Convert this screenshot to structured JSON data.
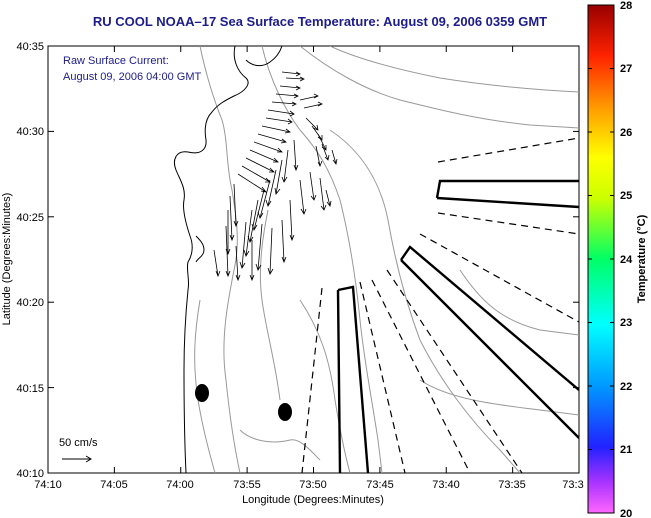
{
  "title": "RU COOL  NOAA–17  Sea Surface Temperature:  August 09, 2006 0359 GMT",
  "legend": {
    "line1": "Raw Surface Current:",
    "line2": "August 09, 2006 04:00 GMT"
  },
  "scale": {
    "label": "50 cm/s"
  },
  "axes": {
    "xlabel": "Longitude (Degrees:Minutes)",
    "ylabel": "Latitude (Degrees:Minutes)",
    "x_ticks": [
      "74:10",
      "74:05",
      "74:00",
      "73:55",
      "73:50",
      "73:45",
      "73:40",
      "73:35",
      "73:3"
    ],
    "y_ticks": [
      "40:35",
      "40:30",
      "40:25",
      "40:20",
      "40:15",
      "40:10"
    ]
  },
  "colorbar": {
    "label": "Temperature (°C)",
    "min": 20,
    "max": 28,
    "ticks": [
      "28",
      "27",
      "26",
      "25",
      "24",
      "23",
      "22",
      "21",
      "20"
    ]
  }
}
